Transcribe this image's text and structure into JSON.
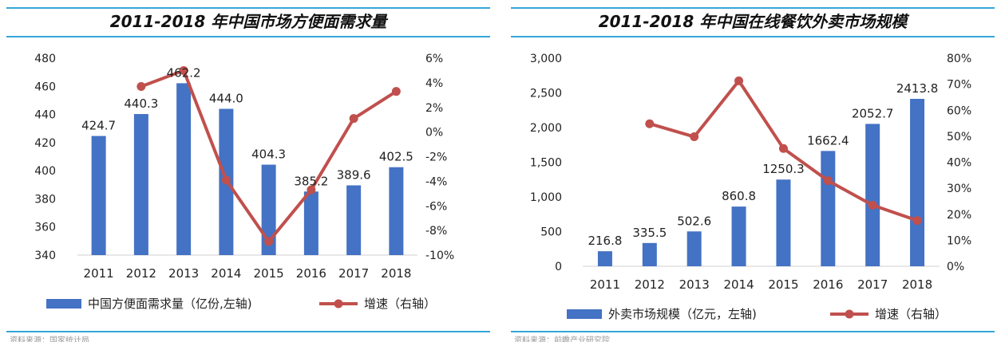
{
  "chart_data": [
    {
      "type": "bar",
      "title": "2011-2018 年中国市场方便面需求量",
      "categories": [
        "2011",
        "2012",
        "2013",
        "2014",
        "2015",
        "2016",
        "2017",
        "2018"
      ],
      "series": [
        {
          "name": "中国方便面需求量（亿份,左轴)",
          "type": "bar",
          "axis": "left",
          "values": [
            424.7,
            440.3,
            462.2,
            444.0,
            404.3,
            385.2,
            389.6,
            402.5
          ],
          "labels": [
            "424.7",
            "440.3",
            "462.2",
            "444.0",
            "404.3",
            "385.2",
            "389.6",
            "402.5"
          ]
        },
        {
          "name": "增速（右轴）",
          "type": "line",
          "axis": "right",
          "values": [
            null,
            3.7,
            5.0,
            -3.9,
            -8.9,
            -4.7,
            1.1,
            3.3
          ]
        }
      ],
      "ylim_left": [
        340,
        480
      ],
      "yticks_left": [
        "480",
        "460",
        "440",
        "420",
        "400",
        "380",
        "360",
        "340"
      ],
      "ylim_right": [
        -10,
        6
      ],
      "yticks_right": [
        "6%",
        "4%",
        "2%",
        "0%",
        "-2%",
        "-4%",
        "-6%",
        "-8%",
        "-10%"
      ],
      "legend_position": "bottom",
      "colors": {
        "bar": "#4472c4",
        "line": "#c0504d"
      }
    },
    {
      "type": "bar",
      "title": "2011-2018 年中国在线餐饮外卖市场规模",
      "categories": [
        "2011",
        "2012",
        "2013",
        "2014",
        "2015",
        "2016",
        "2017",
        "2018"
      ],
      "series": [
        {
          "name": "外卖市场规模（亿元，左轴)",
          "type": "bar",
          "axis": "left",
          "values": [
            216.8,
            335.5,
            502.6,
            860.8,
            1250.3,
            1662.4,
            2052.7,
            2413.8
          ],
          "labels": [
            "216.8",
            "335.5",
            "502.6",
            "860.8",
            "1250.3",
            "1662.4",
            "2052.7",
            "2413.8"
          ]
        },
        {
          "name": "增速（右轴）",
          "type": "line",
          "axis": "right",
          "values": [
            null,
            54.8,
            49.8,
            71.3,
            45.3,
            32.9,
            23.5,
            17.6
          ]
        }
      ],
      "ylim_left": [
        0,
        3000
      ],
      "yticks_left": [
        "3,000",
        "2,500",
        "2,000",
        "1,500",
        "1,000",
        "500",
        "0"
      ],
      "ylim_right": [
        0,
        80
      ],
      "yticks_right": [
        "80%",
        "70%",
        "60%",
        "50%",
        "40%",
        "30%",
        "20%",
        "10%",
        "0%"
      ],
      "legend_position": "bottom",
      "colors": {
        "bar": "#4472c4",
        "line": "#c0504d"
      }
    }
  ],
  "footnotes": [
    "资料来源：国家统计局",
    "资料来源：前瞻产业研究院"
  ]
}
